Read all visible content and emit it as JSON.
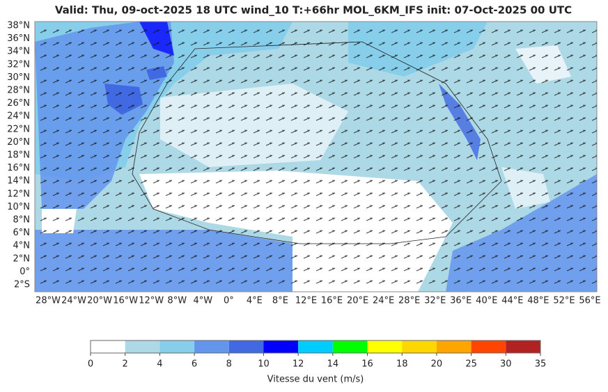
{
  "title": "Valid: Thu, 09-oct-2025   18 UTC   wind_10   T:+66hr   MOL_6KM_IFS   init: 07-Oct-2025    00 UTC",
  "map": {
    "lat_ticks": [
      "38°N",
      "36°N",
      "34°N",
      "32°N",
      "30°N",
      "28°N",
      "26°N",
      "24°N",
      "22°N",
      "20°N",
      "18°N",
      "16°N",
      "14°N",
      "12°N",
      "10°N",
      "8°N",
      "6°N",
      "4°N",
      "2°N",
      "0°",
      "2°S"
    ],
    "lon_ticks": [
      "28°W",
      "24°W",
      "20°W",
      "16°W",
      "12°W",
      "8°W",
      "4°W",
      "0°",
      "4°E",
      "8°E",
      "12°E",
      "16°E",
      "20°E",
      "24°E",
      "28°E",
      "32°E",
      "36°E",
      "40°E",
      "44°E",
      "48°E",
      "52°E",
      "56°E"
    ]
  },
  "colorbar": {
    "bounds": [
      0,
      2,
      4,
      6,
      8,
      10,
      12,
      14,
      16,
      18,
      20,
      25,
      30,
      35
    ],
    "colors": [
      "#ffffff",
      "#add8e6",
      "#87ceeb",
      "#6495ed",
      "#4169e1",
      "#0000ff",
      "#00ccff",
      "#00ff00",
      "#ffff00",
      "#ffd700",
      "#ffa500",
      "#ff4500",
      "#b22222"
    ],
    "label": "Vitesse du vent (m/s)"
  }
}
